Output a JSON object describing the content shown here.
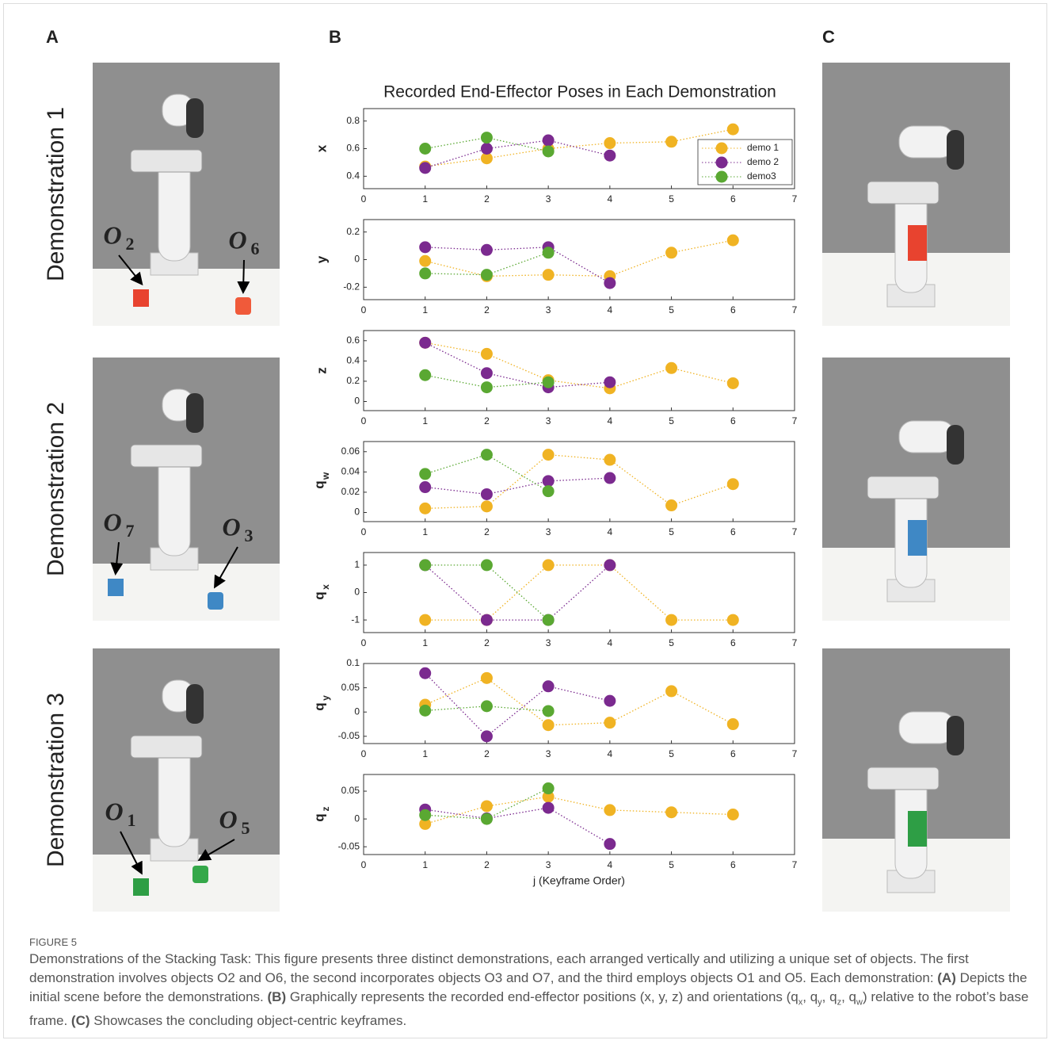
{
  "panels": [
    "A",
    "B",
    "C"
  ],
  "demonstrations": [
    {
      "label": "Demonstration 1",
      "objects": [
        {
          "letter": "O",
          "subscript": "2"
        },
        {
          "letter": "O",
          "subscript": "6"
        }
      ]
    },
    {
      "label": "Demonstration 2",
      "objects": [
        {
          "letter": "O",
          "subscript": "7"
        },
        {
          "letter": "O",
          "subscript": "3"
        }
      ]
    },
    {
      "label": "Demonstration 3",
      "objects": [
        {
          "letter": "O",
          "subscript": "1"
        },
        {
          "letter": "O",
          "subscript": "5"
        }
      ]
    }
  ],
  "chart_data": [
    {
      "type": "line",
      "title": "Recorded End-Effector Poses in Each Demonstration",
      "y_label": "x",
      "legend": "upper right",
      "x": [
        1,
        2,
        3,
        4,
        5,
        6
      ],
      "xlim": [
        0,
        7
      ],
      "xticks": [
        0,
        1,
        2,
        3,
        4,
        5,
        6,
        7
      ],
      "ylim": [
        0.31,
        0.89
      ],
      "yticks": [
        0.4,
        0.6,
        0.8
      ],
      "series": [
        {
          "name": "demo 1",
          "color": "#f0b323",
          "values": [
            0.47,
            0.53,
            0.6,
            0.64,
            0.65,
            0.74
          ]
        },
        {
          "name": "demo 2",
          "color": "#7b2a8f",
          "values": [
            0.46,
            0.6,
            0.66,
            0.55,
            null,
            null
          ]
        },
        {
          "name": "demo3",
          "color": "#5aa832",
          "values": [
            0.6,
            0.68,
            0.58,
            null,
            null,
            null
          ]
        }
      ]
    },
    {
      "type": "line",
      "y_label": "y",
      "x": [
        1,
        2,
        3,
        4,
        5,
        6
      ],
      "xlim": [
        0,
        7
      ],
      "xticks": [
        0,
        1,
        2,
        3,
        4,
        5,
        6,
        7
      ],
      "ylim": [
        -0.29,
        0.29
      ],
      "yticks": [
        -0.2,
        0,
        0.2
      ],
      "series": [
        {
          "color": "#f0b323",
          "values": [
            -0.01,
            -0.12,
            -0.11,
            -0.12,
            0.05,
            0.14
          ]
        },
        {
          "color": "#7b2a8f",
          "values": [
            0.09,
            0.07,
            0.09,
            -0.17,
            null,
            null
          ]
        },
        {
          "color": "#5aa832",
          "values": [
            -0.1,
            -0.11,
            0.05,
            null,
            null,
            null
          ]
        }
      ]
    },
    {
      "type": "line",
      "y_label": "z",
      "x": [
        1,
        2,
        3,
        4,
        5,
        6
      ],
      "xlim": [
        0,
        7
      ],
      "xticks": [
        0,
        1,
        2,
        3,
        4,
        5,
        6,
        7
      ],
      "ylim": [
        -0.09,
        0.7
      ],
      "yticks": [
        0,
        0.2,
        0.4,
        0.6
      ],
      "series": [
        {
          "color": "#f0b323",
          "values": [
            0.58,
            0.47,
            0.21,
            0.13,
            0.33,
            0.18
          ]
        },
        {
          "color": "#7b2a8f",
          "values": [
            0.58,
            0.28,
            0.14,
            0.19,
            null,
            null
          ]
        },
        {
          "color": "#5aa832",
          "values": [
            0.26,
            0.14,
            0.19,
            null,
            null,
            null
          ]
        }
      ]
    },
    {
      "type": "line",
      "y_label": "q",
      "y_label_subscript": "w",
      "x": [
        1,
        2,
        3,
        4,
        5,
        6
      ],
      "xlim": [
        0,
        7
      ],
      "xticks": [
        0,
        1,
        2,
        3,
        4,
        5,
        6,
        7
      ],
      "ylim": [
        -0.009,
        0.07
      ],
      "yticks": [
        0,
        0.02,
        0.04,
        0.06
      ],
      "series": [
        {
          "color": "#f0b323",
          "values": [
            0.004,
            0.006,
            0.057,
            0.052,
            0.007,
            0.028
          ]
        },
        {
          "color": "#7b2a8f",
          "values": [
            0.025,
            0.018,
            0.031,
            0.034,
            null,
            null
          ]
        },
        {
          "color": "#5aa832",
          "values": [
            0.038,
            0.057,
            0.021,
            null,
            null,
            null
          ]
        }
      ]
    },
    {
      "type": "line",
      "y_label": "q",
      "y_label_subscript": "x",
      "x": [
        1,
        2,
        3,
        4,
        5,
        6
      ],
      "xlim": [
        0,
        7
      ],
      "xticks": [
        0,
        1,
        2,
        3,
        4,
        5,
        6,
        7
      ],
      "ylim": [
        -1.46,
        1.46
      ],
      "yticks": [
        -1,
        0,
        1
      ],
      "series": [
        {
          "color": "#f0b323",
          "values": [
            -1,
            -1,
            1,
            1,
            -1,
            -1
          ]
        },
        {
          "color": "#7b2a8f",
          "values": [
            1,
            -1,
            -1,
            1,
            null,
            null
          ]
        },
        {
          "color": "#5aa832",
          "values": [
            1,
            1,
            -1,
            null,
            null,
            null
          ]
        }
      ]
    },
    {
      "type": "line",
      "y_label": "q",
      "y_label_subscript": "y",
      "x": [
        1,
        2,
        3,
        4,
        5,
        6
      ],
      "xlim": [
        0,
        7
      ],
      "xticks": [
        0,
        1,
        2,
        3,
        4,
        5,
        6,
        7
      ],
      "ylim": [
        -0.065,
        0.1
      ],
      "yticks": [
        -0.05,
        0,
        0.05,
        0.1
      ],
      "series": [
        {
          "color": "#f0b323",
          "values": [
            0.015,
            0.07,
            -0.027,
            -0.022,
            0.043,
            -0.025
          ]
        },
        {
          "color": "#7b2a8f",
          "values": [
            0.08,
            -0.05,
            0.053,
            0.023,
            null,
            null
          ]
        },
        {
          "color": "#5aa832",
          "values": [
            0.003,
            0.012,
            0.002,
            null,
            null,
            null
          ]
        }
      ]
    },
    {
      "type": "line",
      "y_label": "q",
      "y_label_subscript": "z",
      "x_label": "j (Keyframe Order)",
      "x": [
        1,
        2,
        3,
        4,
        5,
        6
      ],
      "xlim": [
        0,
        7
      ],
      "xticks": [
        0,
        1,
        2,
        3,
        4,
        5,
        6,
        7
      ],
      "ylim": [
        -0.064,
        0.08
      ],
      "yticks": [
        -0.05,
        0,
        0.05
      ],
      "series": [
        {
          "color": "#f0b323",
          "values": [
            -0.009,
            0.023,
            0.04,
            0.016,
            0.012,
            0.008
          ]
        },
        {
          "color": "#7b2a8f",
          "values": [
            0.017,
            0.001,
            0.02,
            -0.045,
            null,
            null
          ]
        },
        {
          "color": "#5aa832",
          "values": [
            0.007,
            0.0,
            0.055,
            null,
            null,
            null
          ]
        }
      ]
    }
  ],
  "caption": {
    "label": "FIGURE 5",
    "segments": [
      {
        "text": "Demonstrations of the Stacking Task: This figure presents three distinct demonstrations, each arranged vertically and utilizing a unique set of objects. The first demonstration involves objects O2 and O6, the second incorporates objects O3 and O7, and the third employs objects O1 and O5. Each demonstration: "
      },
      {
        "text": "(A)",
        "bold": true
      },
      {
        "text": " Depicts the initial scene before the demonstrations. "
      },
      {
        "text": "(B)",
        "bold": true
      },
      {
        "text": " Graphically represents the recorded end-effector positions (x, y, z) and orientations (q"
      },
      {
        "text": "x",
        "sub": true
      },
      {
        "text": ", q"
      },
      {
        "text": "y",
        "sub": true
      },
      {
        "text": ", q"
      },
      {
        "text": "z",
        "sub": true
      },
      {
        "text": ", q"
      },
      {
        "text": "w",
        "sub": true
      },
      {
        "text": ") relative to the robot’s base frame. "
      },
      {
        "text": "(C)",
        "bold": true
      },
      {
        "text": " Showcases the concluding object-centric keyframes."
      }
    ]
  }
}
